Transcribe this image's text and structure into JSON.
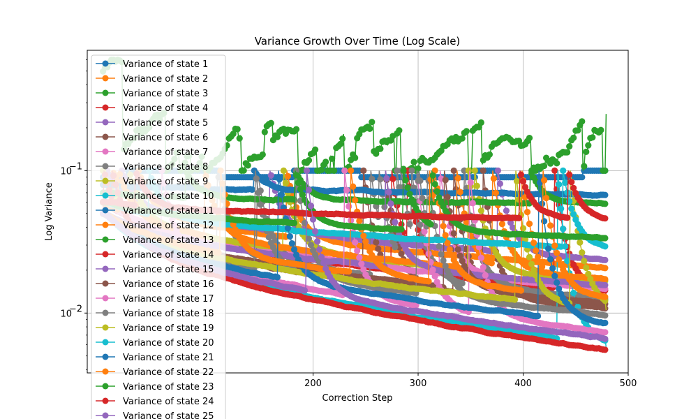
{
  "chart_data": {
    "type": "line",
    "title": "Variance Growth Over Time (Log Scale)",
    "xlabel": "Correction Step",
    "ylabel": "Log Variance",
    "xlim": [
      -15,
      500
    ],
    "ylim": [
      0.0038,
      0.7
    ],
    "yscale": "log",
    "grid": true,
    "legend": "top-left",
    "x_ticks": [
      200,
      300,
      400,
      500
    ],
    "y_ticks": [
      {
        "value": 0.1,
        "base": "10",
        "exp": "−1"
      },
      {
        "value": 0.01,
        "base": "10",
        "exp": "−2"
      }
    ],
    "x_end": 479,
    "series": [
      {
        "name": "Variance of state 1",
        "color": "#1f77b4",
        "style": "flat",
        "start": 0.09,
        "end": 0.1
      },
      {
        "name": "Variance of state 2",
        "color": "#ff7f0e",
        "style": "decay",
        "start": 0.07,
        "end": 0.0205
      },
      {
        "name": "Variance of state 3",
        "color": "#2ca02c",
        "style": "noisy",
        "start": 0.5,
        "end": 0.25
      },
      {
        "name": "Variance of state 4",
        "color": "#d62728",
        "style": "decay",
        "start": 0.06,
        "end": 0.0135
      },
      {
        "name": "Variance of state 5",
        "color": "#9467bd",
        "style": "decay",
        "start": 0.07,
        "end": 0.0235
      },
      {
        "name": "Variance of state 6",
        "color": "#8c564b",
        "style": "decay",
        "start": 0.05,
        "end": 0.0105
      },
      {
        "name": "Variance of state 7",
        "color": "#e377c2",
        "style": "decay",
        "start": 0.06,
        "end": 0.0145
      },
      {
        "name": "Variance of state 8",
        "color": "#7f7f7f",
        "style": "decay",
        "start": 0.05,
        "end": 0.0125
      },
      {
        "name": "Variance of state 9",
        "color": "#bcbd22",
        "style": "decay",
        "start": 0.06,
        "end": 0.0165
      },
      {
        "name": "Variance of state 10",
        "color": "#17becf",
        "style": "decay",
        "start": 0.05,
        "end": 0.0058
      },
      {
        "name": "Variance of state 11",
        "color": "#1f77b4",
        "style": "decay",
        "start": 0.08,
        "end": 0.068
      },
      {
        "name": "Variance of state 12",
        "color": "#ff7f0e",
        "style": "decay",
        "start": 0.06,
        "end": 0.017
      },
      {
        "name": "Variance of state 13",
        "color": "#2ca02c",
        "style": "decay",
        "start": 0.07,
        "end": 0.058
      },
      {
        "name": "Variance of state 14",
        "color": "#d62728",
        "style": "decay",
        "start": 0.05,
        "end": 0.0054
      },
      {
        "name": "Variance of state 15",
        "color": "#9467bd",
        "style": "decay",
        "start": 0.05,
        "end": 0.0155
      },
      {
        "name": "Variance of state 16",
        "color": "#8c564b",
        "style": "decay",
        "start": 0.05,
        "end": 0.0115
      },
      {
        "name": "Variance of state 17",
        "color": "#e377c2",
        "style": "decay",
        "start": 0.05,
        "end": 0.0072
      },
      {
        "name": "Variance of state 18",
        "color": "#7f7f7f",
        "style": "decay",
        "start": 0.05,
        "end": 0.0095
      },
      {
        "name": "Variance of state 19",
        "color": "#bcbd22",
        "style": "decay",
        "start": 0.05,
        "end": 0.0105
      },
      {
        "name": "Variance of state 20",
        "color": "#17becf",
        "style": "decay",
        "start": 0.06,
        "end": 0.028
      },
      {
        "name": "Variance of state 21",
        "color": "#1f77b4",
        "style": "decay",
        "start": 0.05,
        "end": 0.0082
      },
      {
        "name": "Variance of state 22",
        "color": "#ff7f0e",
        "style": "decay",
        "start": 0.05,
        "end": 0.0125
      },
      {
        "name": "Variance of state 23",
        "color": "#2ca02c",
        "style": "decay",
        "start": 0.06,
        "end": 0.0335
      },
      {
        "name": "Variance of state 24",
        "color": "#d62728",
        "style": "decay",
        "start": 0.06,
        "end": 0.045
      },
      {
        "name": "Variance of state 25",
        "color": "#9467bd",
        "style": "decay",
        "start": 0.05,
        "end": 0.0065
      }
    ]
  }
}
